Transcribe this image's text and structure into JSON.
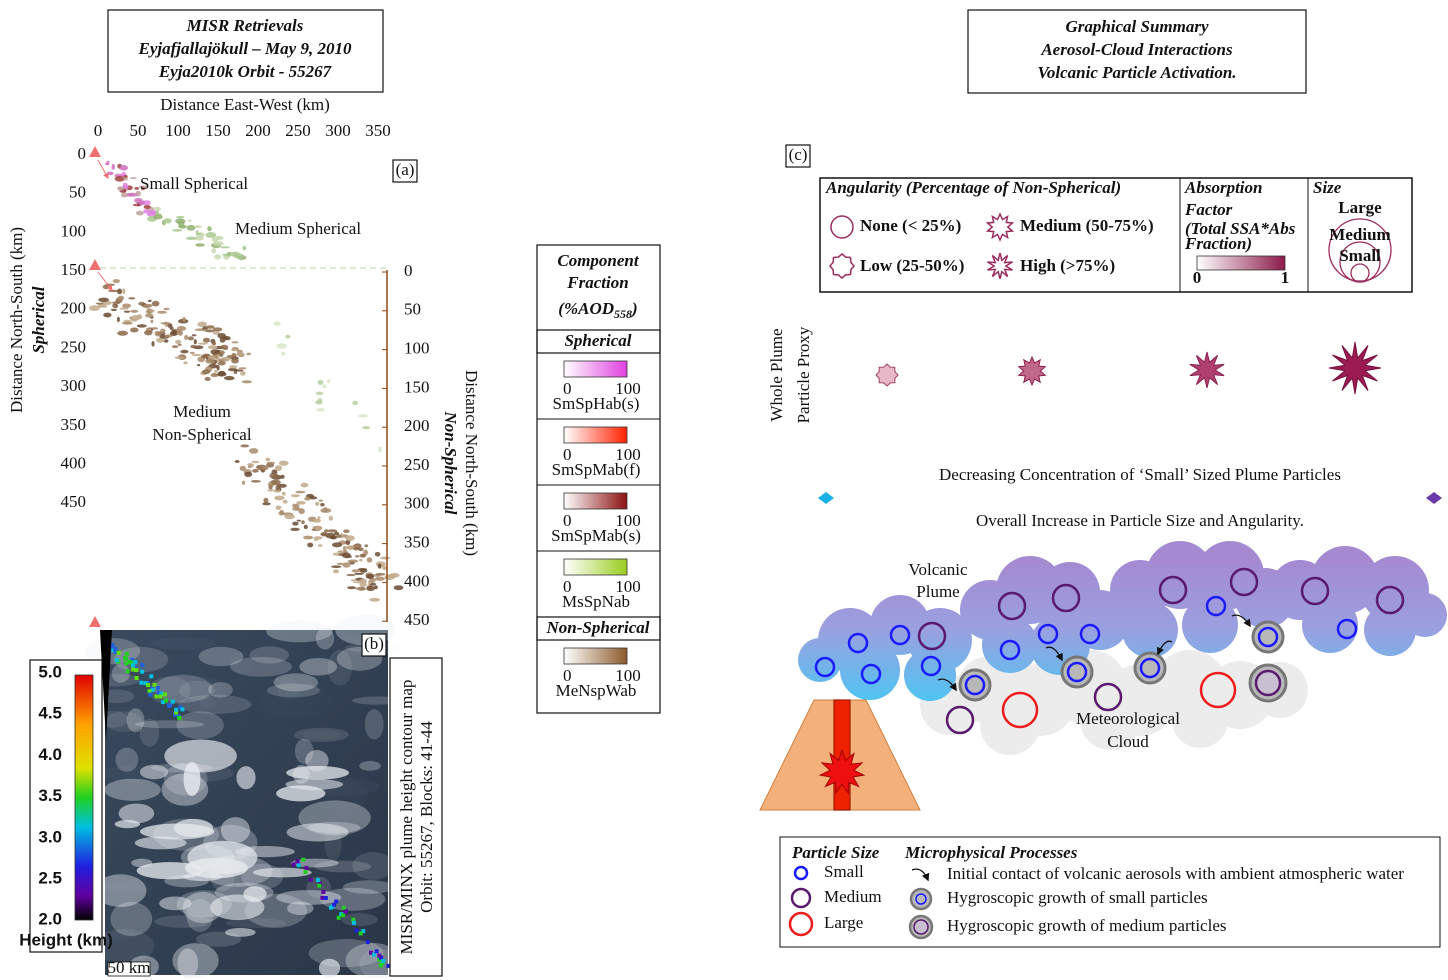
{
  "panel_a": {
    "title_lines": [
      "MISR Retrievals",
      "Eyjafjallajökull – May 9, 2010",
      "Eyja2010k    Orbit - 55267"
    ],
    "x_axis_label": "Distance East-West (km)",
    "x_ticks": [
      "0",
      "50",
      "100",
      "150",
      "200",
      "250",
      "300",
      "350"
    ],
    "y_ticks": [
      "0",
      "50",
      "100",
      "150",
      "200",
      "250",
      "300",
      "350",
      "400",
      "450"
    ],
    "y_axis_label": "Distance North-South (km)",
    "y_axis_class": "Spherical",
    "y2_ticks": [
      "0",
      "50",
      "100",
      "150",
      "200",
      "250",
      "300",
      "350",
      "400",
      "450"
    ],
    "y2_axis_label": "Distance North-South (km)",
    "y2_axis_class": "Non-Spherical",
    "label": "(a)",
    "annotations": {
      "small_spherical": "Small Spherical",
      "medium_spherical": "Medium Spherical",
      "medium_non_spherical": [
        "Medium",
        "Non-Spherical"
      ]
    }
  },
  "legend": {
    "title_lines": [
      "Component",
      "Fraction"
    ],
    "aod": {
      "prefix": "(%AOD",
      "subscript": "558",
      "suffix": ")"
    },
    "groups": [
      {
        "name": "Spherical",
        "bars": [
          {
            "name": "SmSpHab(s)",
            "min": "0",
            "max": "100"
          },
          {
            "name": "SmSpMab(f)",
            "min": "0",
            "max": "100"
          },
          {
            "name": "SmSpMab(s)",
            "min": "0",
            "max": "100"
          },
          {
            "name": "MsSpNab",
            "min": "0",
            "max": "100"
          }
        ]
      },
      {
        "name": "Non-Spherical",
        "bars": [
          {
            "name": "MeNspWab",
            "min": "0",
            "max": "100"
          }
        ]
      }
    ]
  },
  "panel_b": {
    "label": "(b)",
    "colorbar_ticks": [
      "5.0",
      "4.5",
      "4.0",
      "3.5",
      "3.0",
      "2.5",
      "2.0"
    ],
    "colorbar_label": "Height (km)",
    "scale_bar": "50 km",
    "caption_lines": [
      "MISR/MINX plume height contour map",
      "Orbit: 55267, Blocks: 41-44"
    ]
  },
  "panel_c": {
    "title_lines": [
      "Graphical Summary",
      "Aerosol-Cloud Interactions",
      "Volcanic Particle Activation."
    ],
    "label": "(c)",
    "angularity": {
      "title": "Angularity (Percentage of Non-Spherical)",
      "items": [
        "None (< 25%)",
        "Low (25-50%)",
        "Medium (50-75%)",
        "High (>75%)"
      ]
    },
    "absorption": {
      "title_lines": [
        "Absorption",
        "Factor"
      ],
      "note_lines": [
        "(Total SSA*Abs",
        "Fraction)"
      ],
      "min": "0",
      "max": "1"
    },
    "size": {
      "title": "Size",
      "labels": [
        "Large",
        "Medium",
        "Small"
      ]
    },
    "proxy_label": [
      "Whole Plume",
      "Particle Proxy"
    ],
    "trend_top": "Decreasing Concentration of ‘Small’ Sized Plume Particles",
    "trend_bottom": "Overall Increase in Particle Size and Angularity.",
    "plume_label": [
      "Volcanic",
      "Plume"
    ],
    "cloud_label": [
      "Meteorological",
      "Cloud"
    ],
    "key": {
      "size_title": "Particle Size",
      "sizes": [
        "Small",
        "Medium",
        "Large"
      ],
      "process_title": "Microphysical Processes",
      "processes": [
        "Initial contact of volcanic aerosols with ambient atmospheric water",
        "Hygroscopic growth of small particles",
        "Hygroscopic growth of medium particles"
      ]
    }
  }
}
